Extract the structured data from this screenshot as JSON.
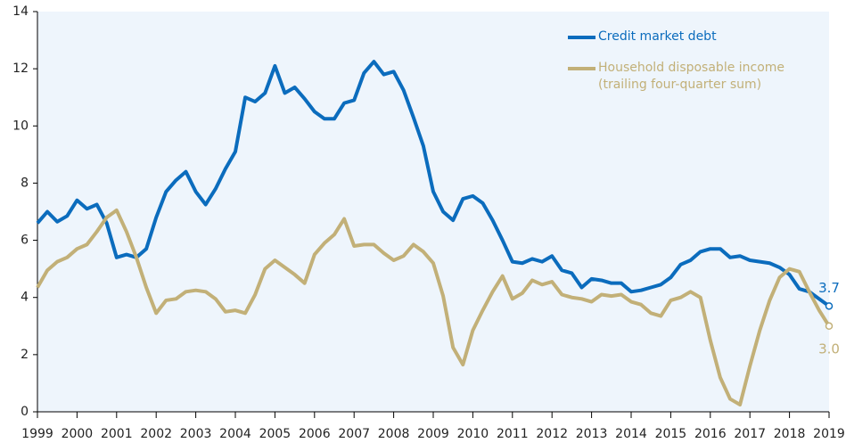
{
  "chart_data": {
    "type": "line",
    "x": [
      1999,
      1999.25,
      1999.5,
      1999.75,
      2000,
      2000.25,
      2000.5,
      2000.75,
      2001,
      2001.25,
      2001.5,
      2001.75,
      2002,
      2002.25,
      2002.5,
      2002.75,
      2003,
      2003.25,
      2003.5,
      2003.75,
      2004,
      2004.25,
      2004.5,
      2004.75,
      2005,
      2005.25,
      2005.5,
      2005.75,
      2006,
      2006.25,
      2006.5,
      2006.75,
      2007,
      2007.25,
      2007.5,
      2007.75,
      2008,
      2008.25,
      2008.5,
      2008.75,
      2009,
      2009.25,
      2009.5,
      2009.75,
      2010,
      2010.25,
      2010.5,
      2010.75,
      2011,
      2011.25,
      2011.5,
      2011.75,
      2012,
      2012.25,
      2012.5,
      2012.75,
      2013,
      2013.25,
      2013.5,
      2013.75,
      2014,
      2014.25,
      2014.5,
      2014.75,
      2015,
      2015.25,
      2015.5,
      2015.75,
      2016,
      2016.25,
      2016.5,
      2016.75,
      2017,
      2017.25,
      2017.5,
      2017.75,
      2018,
      2018.25,
      2018.5,
      2018.75,
      2019
    ],
    "series": [
      {
        "name": "Credit market debt",
        "color": "#0b6cbd",
        "end_label": "3.7",
        "values": [
          6.6,
          7.0,
          6.65,
          6.85,
          7.4,
          7.1,
          7.25,
          6.6,
          5.4,
          5.5,
          5.4,
          5.7,
          6.8,
          7.7,
          8.1,
          8.4,
          7.7,
          7.25,
          7.8,
          8.5,
          9.1,
          11.0,
          10.85,
          11.15,
          12.1,
          11.15,
          11.35,
          10.95,
          10.5,
          10.25,
          10.25,
          10.8,
          10.9,
          11.85,
          12.25,
          11.8,
          11.9,
          11.25,
          10.3,
          9.3,
          7.7,
          7.0,
          6.7,
          7.45,
          7.55,
          7.3,
          6.7,
          6.0,
          5.25,
          5.2,
          5.35,
          5.25,
          5.45,
          4.95,
          4.85,
          4.35,
          4.65,
          4.6,
          4.5,
          4.5,
          4.2,
          4.25,
          4.35,
          4.45,
          4.7,
          5.15,
          5.3,
          5.6,
          5.7,
          5.7,
          5.4,
          5.45,
          5.3,
          5.25,
          5.2,
          5.05,
          4.8,
          4.3,
          4.2,
          3.95,
          3.7
        ]
      },
      {
        "name": "Household disposable income\n(trailing four-quarter sum)",
        "color": "#c2b078",
        "end_label": "3.0",
        "values": [
          4.35,
          4.95,
          5.25,
          5.4,
          5.7,
          5.85,
          6.3,
          6.8,
          7.05,
          6.3,
          5.4,
          4.35,
          3.45,
          3.9,
          3.95,
          4.2,
          4.25,
          4.2,
          3.95,
          3.5,
          3.55,
          3.45,
          4.1,
          5.0,
          5.3,
          5.05,
          4.8,
          4.5,
          5.5,
          5.9,
          6.2,
          6.75,
          5.8,
          5.85,
          5.85,
          5.55,
          5.3,
          5.45,
          5.85,
          5.6,
          5.2,
          4.05,
          2.25,
          1.65,
          2.85,
          3.55,
          4.2,
          4.75,
          3.95,
          4.15,
          4.6,
          4.45,
          4.55,
          4.1,
          4.0,
          3.95,
          3.85,
          4.1,
          4.05,
          4.1,
          3.85,
          3.75,
          3.45,
          3.35,
          3.9,
          4.0,
          4.2,
          4.0,
          2.5,
          1.2,
          0.45,
          0.25,
          1.6,
          2.85,
          3.9,
          4.7,
          5.0,
          4.9,
          4.2,
          3.55,
          3.0
        ]
      }
    ],
    "xlim": [
      1999,
      2019
    ],
    "xticks": [
      1999,
      2000,
      2001,
      2002,
      2003,
      2004,
      2005,
      2006,
      2007,
      2008,
      2009,
      2010,
      2011,
      2012,
      2013,
      2014,
      2015,
      2016,
      2017,
      2018,
      2019
    ],
    "ylim": [
      0,
      14
    ],
    "yticks": [
      0,
      2,
      4,
      6,
      8,
      10,
      12,
      14
    ]
  }
}
